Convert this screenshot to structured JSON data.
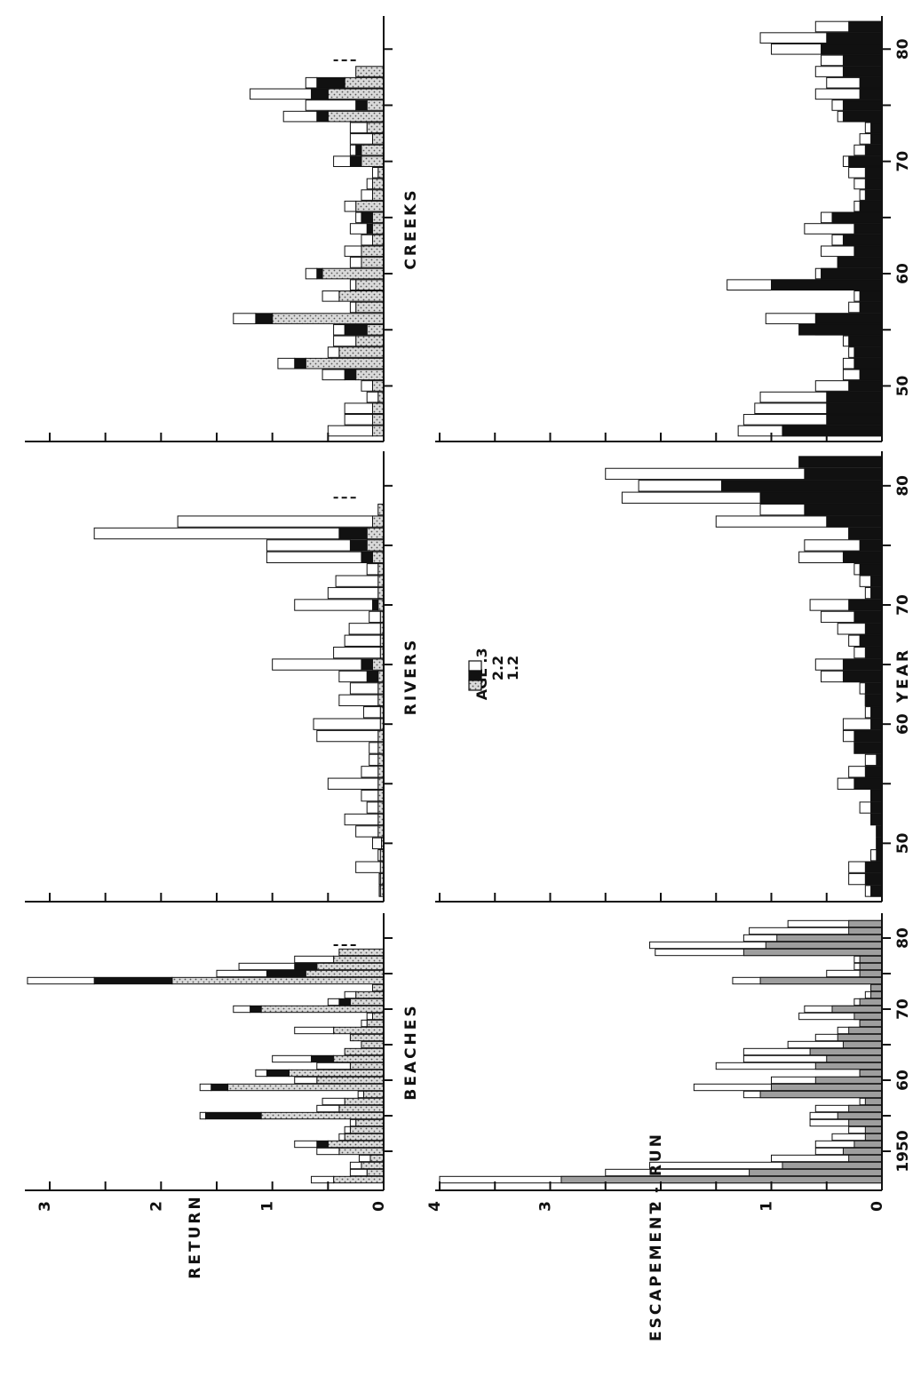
{
  "chart_data": {
    "type": "bar",
    "stacked": true,
    "orientation": "rotated 90 degrees counter-clockwise",
    "legend": {
      "title": "AGE",
      "entries": [
        ".3",
        "2.2",
        "1.2"
      ],
      "placement": "top-center (rotated)"
    },
    "series_names": [
      ".3",
      "2.2",
      "1.2"
    ],
    "colors": {
      "age_3": "#ffffff",
      "age_22": "#111111",
      "age_12": "#d4d4d4",
      "escapement_fill": "#9e9e9e",
      "ink": "#111111"
    },
    "x": {
      "label": "YEAR",
      "ticks": [
        1950,
        1955,
        1960,
        1965,
        1970,
        1975,
        1980
      ],
      "tick_labels": [
        "1950",
        "50",
        "60",
        "70",
        "80"
      ],
      "range": [
        1945,
        1983
      ]
    },
    "return_axis": {
      "label": "RETURN",
      "ticks": [
        "0",
        "1",
        "2",
        "3"
      ],
      "ylim": [
        0,
        3.3
      ]
    },
    "escapement_axis": {
      "label": "ESCAPEMENT - RUN",
      "ticks": [
        "0",
        "1",
        "2",
        "3",
        "4"
      ],
      "ylim": [
        0,
        4.1
      ]
    },
    "panels": [
      {
        "title": "BEACHES",
        "return": {
          "years": [
            1946,
            1947,
            1948,
            1949,
            1950,
            1951,
            1952,
            1953,
            1954,
            1955,
            1956,
            1957,
            1958,
            1959,
            1960,
            1961,
            1962,
            1963,
            1964,
            1965,
            1966,
            1967,
            1968,
            1969,
            1970,
            1971,
            1972,
            1973,
            1974,
            1975,
            1976,
            1977,
            1978
          ],
          "series": [
            {
              "name": "1.2",
              "values": [
                0.45,
                0.15,
                0.2,
                0.12,
                0.4,
                0.5,
                0.35,
                0.3,
                0.25,
                1.1,
                0.4,
                0.35,
                0.18,
                1.4,
                0.6,
                0.85,
                0.3,
                0.45,
                0.35,
                0.2,
                0.3,
                0.45,
                0.15,
                0.1,
                1.1,
                0.3,
                0.25,
                0.1,
                1.9,
                0.7,
                0.6,
                0.45,
                0.4
              ]
            },
            {
              "name": "2.2",
              "values": [
                0.0,
                0.0,
                0.0,
                0.0,
                0.0,
                0.1,
                0.0,
                0.0,
                0.0,
                0.5,
                0.0,
                0.0,
                0.0,
                0.15,
                0.0,
                0.2,
                0.0,
                0.2,
                0.0,
                0.0,
                0.0,
                0.0,
                0.0,
                0.0,
                0.1,
                0.1,
                0.0,
                0.0,
                0.7,
                0.35,
                0.2,
                0.0,
                0.0
              ]
            },
            {
              "name": ".3",
              "values": [
                0.2,
                0.15,
                0.1,
                0.1,
                0.2,
                0.2,
                0.05,
                0.05,
                0.05,
                0.05,
                0.2,
                0.2,
                0.05,
                0.1,
                0.2,
                0.1,
                0.3,
                0.35,
                0.0,
                0.0,
                0.0,
                0.35,
                0.05,
                0.05,
                0.15,
                0.1,
                0.1,
                0.0,
                0.6,
                0.45,
                0.5,
                0.35,
                0.0
              ]
            }
          ],
          "pending_year": 1979
        },
        "escapement": {
          "years": [
            1946,
            1947,
            1948,
            1949,
            1950,
            1951,
            1952,
            1953,
            1954,
            1955,
            1956,
            1957,
            1958,
            1959,
            1960,
            1961,
            1962,
            1963,
            1964,
            1965,
            1966,
            1967,
            1968,
            1969,
            1970,
            1971,
            1972,
            1973,
            1974,
            1975,
            1976,
            1977,
            1978,
            1979,
            1980,
            1981,
            1982
          ],
          "escapement": [
            2.9,
            1.2,
            0.9,
            0.3,
            0.35,
            0.25,
            0.15,
            0.15,
            0.3,
            0.4,
            0.3,
            0.15,
            1.1,
            1.0,
            0.6,
            0.2,
            0.6,
            0.5,
            0.65,
            0.35,
            0.4,
            0.3,
            0.2,
            0.25,
            0.45,
            0.2,
            0.1,
            0.1,
            1.1,
            0.2,
            0.2,
            0.2,
            1.25,
            1.05,
            0.95,
            0.3,
            0.3
          ],
          "run": [
            4.0,
            2.5,
            2.1,
            1.0,
            0.6,
            0.6,
            0.45,
            0.3,
            0.65,
            0.65,
            0.6,
            0.2,
            1.25,
            1.7,
            1.0,
            0.2,
            1.5,
            1.25,
            1.25,
            0.85,
            0.6,
            0.4,
            0.2,
            0.75,
            0.7,
            0.25,
            0.15,
            0.1,
            1.35,
            0.5,
            0.25,
            0.25,
            2.05,
            2.1,
            1.25,
            1.2,
            0.85
          ]
        }
      },
      {
        "title": "RIVERS",
        "return": {
          "years": [
            1946,
            1947,
            1948,
            1949,
            1950,
            1951,
            1952,
            1953,
            1954,
            1955,
            1956,
            1957,
            1958,
            1959,
            1960,
            1961,
            1962,
            1963,
            1964,
            1965,
            1966,
            1967,
            1968,
            1969,
            1970,
            1971,
            1972,
            1973,
            1974,
            1975,
            1976,
            1977,
            1978
          ],
          "series": [
            {
              "name": "1.2",
              "values": [
                0.03,
                0.03,
                0.03,
                0.03,
                0.02,
                0.05,
                0.05,
                0.05,
                0.05,
                0.05,
                0.05,
                0.05,
                0.05,
                0.05,
                0.03,
                0.03,
                0.05,
                0.05,
                0.05,
                0.1,
                0.03,
                0.03,
                0.03,
                0.03,
                0.05,
                0.05,
                0.05,
                0.05,
                0.1,
                0.15,
                0.15,
                0.1,
                0.05
              ]
            },
            {
              "name": "2.2",
              "values": [
                0.0,
                0.0,
                0.0,
                0.0,
                0.0,
                0.0,
                0.0,
                0.0,
                0.0,
                0.0,
                0.0,
                0.0,
                0.0,
                0.0,
                0.0,
                0.0,
                0.0,
                0.0,
                0.1,
                0.1,
                0.0,
                0.0,
                0.0,
                0.0,
                0.05,
                0.0,
                0.0,
                0.0,
                0.1,
                0.15,
                0.25,
                0.0,
                0.0
              ]
            },
            {
              "name": ".3",
              "values": [
                0.01,
                0.01,
                0.22,
                0.02,
                0.08,
                0.2,
                0.3,
                0.1,
                0.15,
                0.45,
                0.15,
                0.08,
                0.08,
                0.55,
                0.6,
                0.15,
                0.35,
                0.25,
                0.25,
                0.8,
                0.42,
                0.32,
                0.28,
                0.1,
                0.7,
                0.45,
                0.38,
                0.1,
                0.85,
                0.75,
                2.2,
                1.75,
                0.0
              ]
            }
          ],
          "pending_year": 1979
        },
        "escapement": {
          "years": [
            1946,
            1947,
            1948,
            1949,
            1950,
            1951,
            1952,
            1953,
            1954,
            1955,
            1956,
            1957,
            1958,
            1959,
            1960,
            1961,
            1962,
            1963,
            1964,
            1965,
            1966,
            1967,
            1968,
            1969,
            1970,
            1971,
            1972,
            1973,
            1974,
            1975,
            1976,
            1977,
            1978,
            1979,
            1980,
            1981,
            1982
          ],
          "escapement": [
            0.1,
            0.15,
            0.15,
            0.05,
            0.05,
            0.05,
            0.1,
            0.1,
            0.1,
            0.25,
            0.15,
            0.05,
            0.25,
            0.25,
            0.1,
            0.1,
            0.15,
            0.15,
            0.35,
            0.35,
            0.15,
            0.2,
            0.15,
            0.25,
            0.3,
            0.1,
            0.1,
            0.2,
            0.35,
            0.2,
            0.3,
            0.5,
            0.7,
            1.1,
            1.45,
            0.7,
            0.75
          ],
          "run": [
            0.15,
            0.3,
            0.3,
            0.1,
            0.05,
            0.05,
            0.1,
            0.2,
            0.1,
            0.4,
            0.3,
            0.15,
            0.25,
            0.35,
            0.35,
            0.15,
            0.15,
            0.2,
            0.55,
            0.6,
            0.25,
            0.3,
            0.4,
            0.55,
            0.65,
            0.15,
            0.2,
            0.25,
            0.75,
            0.7,
            0.3,
            1.5,
            1.1,
            2.35,
            2.2,
            2.5,
            0.0
          ]
        }
      },
      {
        "title": "CREEKS",
        "return": {
          "years": [
            1946,
            1947,
            1948,
            1949,
            1950,
            1951,
            1952,
            1953,
            1954,
            1955,
            1956,
            1957,
            1958,
            1959,
            1960,
            1961,
            1962,
            1963,
            1964,
            1965,
            1966,
            1967,
            1968,
            1969,
            1970,
            1971,
            1972,
            1973,
            1974,
            1975,
            1976,
            1977,
            1978
          ],
          "series": [
            {
              "name": "1.2",
              "values": [
                0.1,
                0.1,
                0.1,
                0.05,
                0.1,
                0.25,
                0.7,
                0.4,
                0.25,
                0.15,
                1.0,
                0.25,
                0.4,
                0.25,
                0.55,
                0.2,
                0.2,
                0.1,
                0.1,
                0.1,
                0.25,
                0.1,
                0.1,
                0.05,
                0.2,
                0.2,
                0.1,
                0.15,
                0.5,
                0.15,
                0.5,
                0.35,
                0.25
              ]
            },
            {
              "name": "2.2",
              "values": [
                0.0,
                0.0,
                0.0,
                0.0,
                0.0,
                0.1,
                0.1,
                0.0,
                0.0,
                0.2,
                0.15,
                0.0,
                0.0,
                0.0,
                0.05,
                0.0,
                0.0,
                0.0,
                0.05,
                0.1,
                0.0,
                0.0,
                0.0,
                0.0,
                0.1,
                0.05,
                0.0,
                0.0,
                0.1,
                0.1,
                0.15,
                0.25,
                0.0
              ]
            },
            {
              "name": ".3",
              "values": [
                0.4,
                0.25,
                0.25,
                0.1,
                0.1,
                0.2,
                0.15,
                0.1,
                0.2,
                0.1,
                0.2,
                0.05,
                0.15,
                0.05,
                0.1,
                0.1,
                0.15,
                0.1,
                0.15,
                0.05,
                0.1,
                0.1,
                0.05,
                0.05,
                0.15,
                0.05,
                0.2,
                0.15,
                0.3,
                0.45,
                0.55,
                0.1,
                0.0
              ]
            }
          ],
          "pending_year": 1979
        },
        "escapement": {
          "years": [
            1946,
            1947,
            1948,
            1949,
            1950,
            1951,
            1952,
            1953,
            1954,
            1955,
            1956,
            1957,
            1958,
            1959,
            1960,
            1961,
            1962,
            1963,
            1964,
            1965,
            1966,
            1967,
            1968,
            1969,
            1970,
            1971,
            1972,
            1973,
            1974,
            1975,
            1976,
            1977,
            1978,
            1979,
            1980,
            1981,
            1982
          ],
          "escapement": [
            0.9,
            0.5,
            0.5,
            0.5,
            0.3,
            0.2,
            0.25,
            0.25,
            0.3,
            0.75,
            0.6,
            0.2,
            0.2,
            1.0,
            0.55,
            0.4,
            0.25,
            0.35,
            0.25,
            0.45,
            0.2,
            0.15,
            0.15,
            0.15,
            0.3,
            0.15,
            0.1,
            0.1,
            0.35,
            0.35,
            0.2,
            0.2,
            0.35,
            0.35,
            0.55,
            0.5,
            0.3
          ],
          "run": [
            1.3,
            1.25,
            1.15,
            1.1,
            0.6,
            0.35,
            0.35,
            0.3,
            0.35,
            0.6,
            1.05,
            0.3,
            0.25,
            1.4,
            0.6,
            0.4,
            0.55,
            0.45,
            0.7,
            0.55,
            0.25,
            0.2,
            0.25,
            0.3,
            0.35,
            0.25,
            0.2,
            0.15,
            0.4,
            0.45,
            0.6,
            0.5,
            0.6,
            0.55,
            1.0,
            1.1,
            0.6
          ]
        }
      }
    ]
  }
}
